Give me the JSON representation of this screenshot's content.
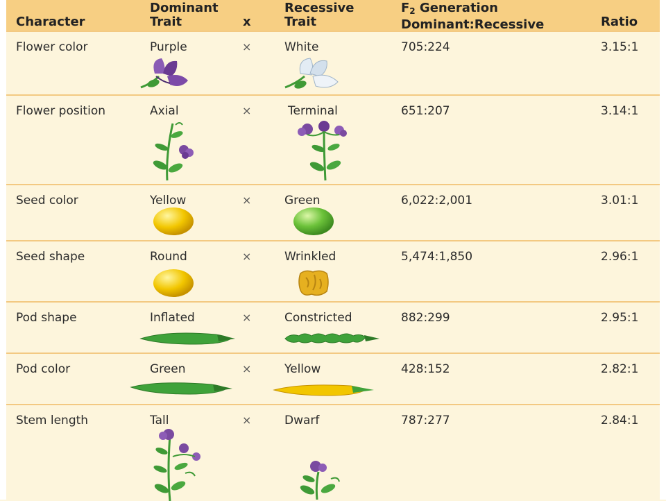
{
  "header": {
    "character": "Character",
    "dominant_l1": "Dominant",
    "dominant_l2": "Trait",
    "x": "x",
    "recessive_l1": "Recessive",
    "recessive_l2": "Trait",
    "f2_prefix": "F",
    "f2_sub": "2",
    "f2_suffix": " Generation",
    "f2_l2": "Dominant:Recessive",
    "ratio": "Ratio"
  },
  "rows": [
    {
      "character": "Flower color",
      "dominant": "Purple",
      "cross": "×",
      "recessive": "White",
      "f2": "705:224",
      "ratio": "3.15:1",
      "dominant_icon": "purple-flower-icon",
      "recessive_icon": "white-flower-icon"
    },
    {
      "character": "Flower position",
      "dominant": "Axial",
      "cross": "×",
      "recessive": "Terminal",
      "f2": "651:207",
      "ratio": "3.14:1",
      "dominant_icon": "axial-flower-plant-icon",
      "recessive_icon": "terminal-flower-plant-icon"
    },
    {
      "character": "Seed color",
      "dominant": "Yellow",
      "cross": "×",
      "recessive": "Green",
      "f2": "6,022:2,001",
      "ratio": "3.01:1",
      "dominant_icon": "yellow-seed-icon",
      "recessive_icon": "green-seed-icon"
    },
    {
      "character": "Seed shape",
      "dominant": "Round",
      "cross": "×",
      "recessive": "Wrinkled",
      "f2": "5,474:1,850",
      "ratio": "2.96:1",
      "dominant_icon": "round-seed-icon",
      "recessive_icon": "wrinkled-seed-icon"
    },
    {
      "character": "Pod shape",
      "dominant": "Inflated",
      "cross": "×",
      "recessive": "Constricted",
      "f2": "882:299",
      "ratio": "2.95:1",
      "dominant_icon": "inflated-pod-icon",
      "recessive_icon": "constricted-pod-icon"
    },
    {
      "character": "Pod color",
      "dominant": "Green",
      "cross": "×",
      "recessive": "Yellow",
      "f2": "428:152",
      "ratio": "2.82:1",
      "dominant_icon": "green-pod-icon",
      "recessive_icon": "yellow-pod-icon"
    },
    {
      "character": "Stem length",
      "dominant": "Tall",
      "cross": "×",
      "recessive": "Dwarf",
      "f2": "787:277",
      "ratio": "2.84:1",
      "dominant_icon": "tall-plant-icon",
      "recessive_icon": "dwarf-plant-icon"
    }
  ],
  "colors": {
    "background": "#fdf5dc",
    "header": "#f7cf83",
    "divider": "#f3c982",
    "purple": "#7a4aa0",
    "leaf_green": "#3f9a36",
    "seed_yellow": "#f2c600",
    "seed_green": "#6cc23a"
  }
}
